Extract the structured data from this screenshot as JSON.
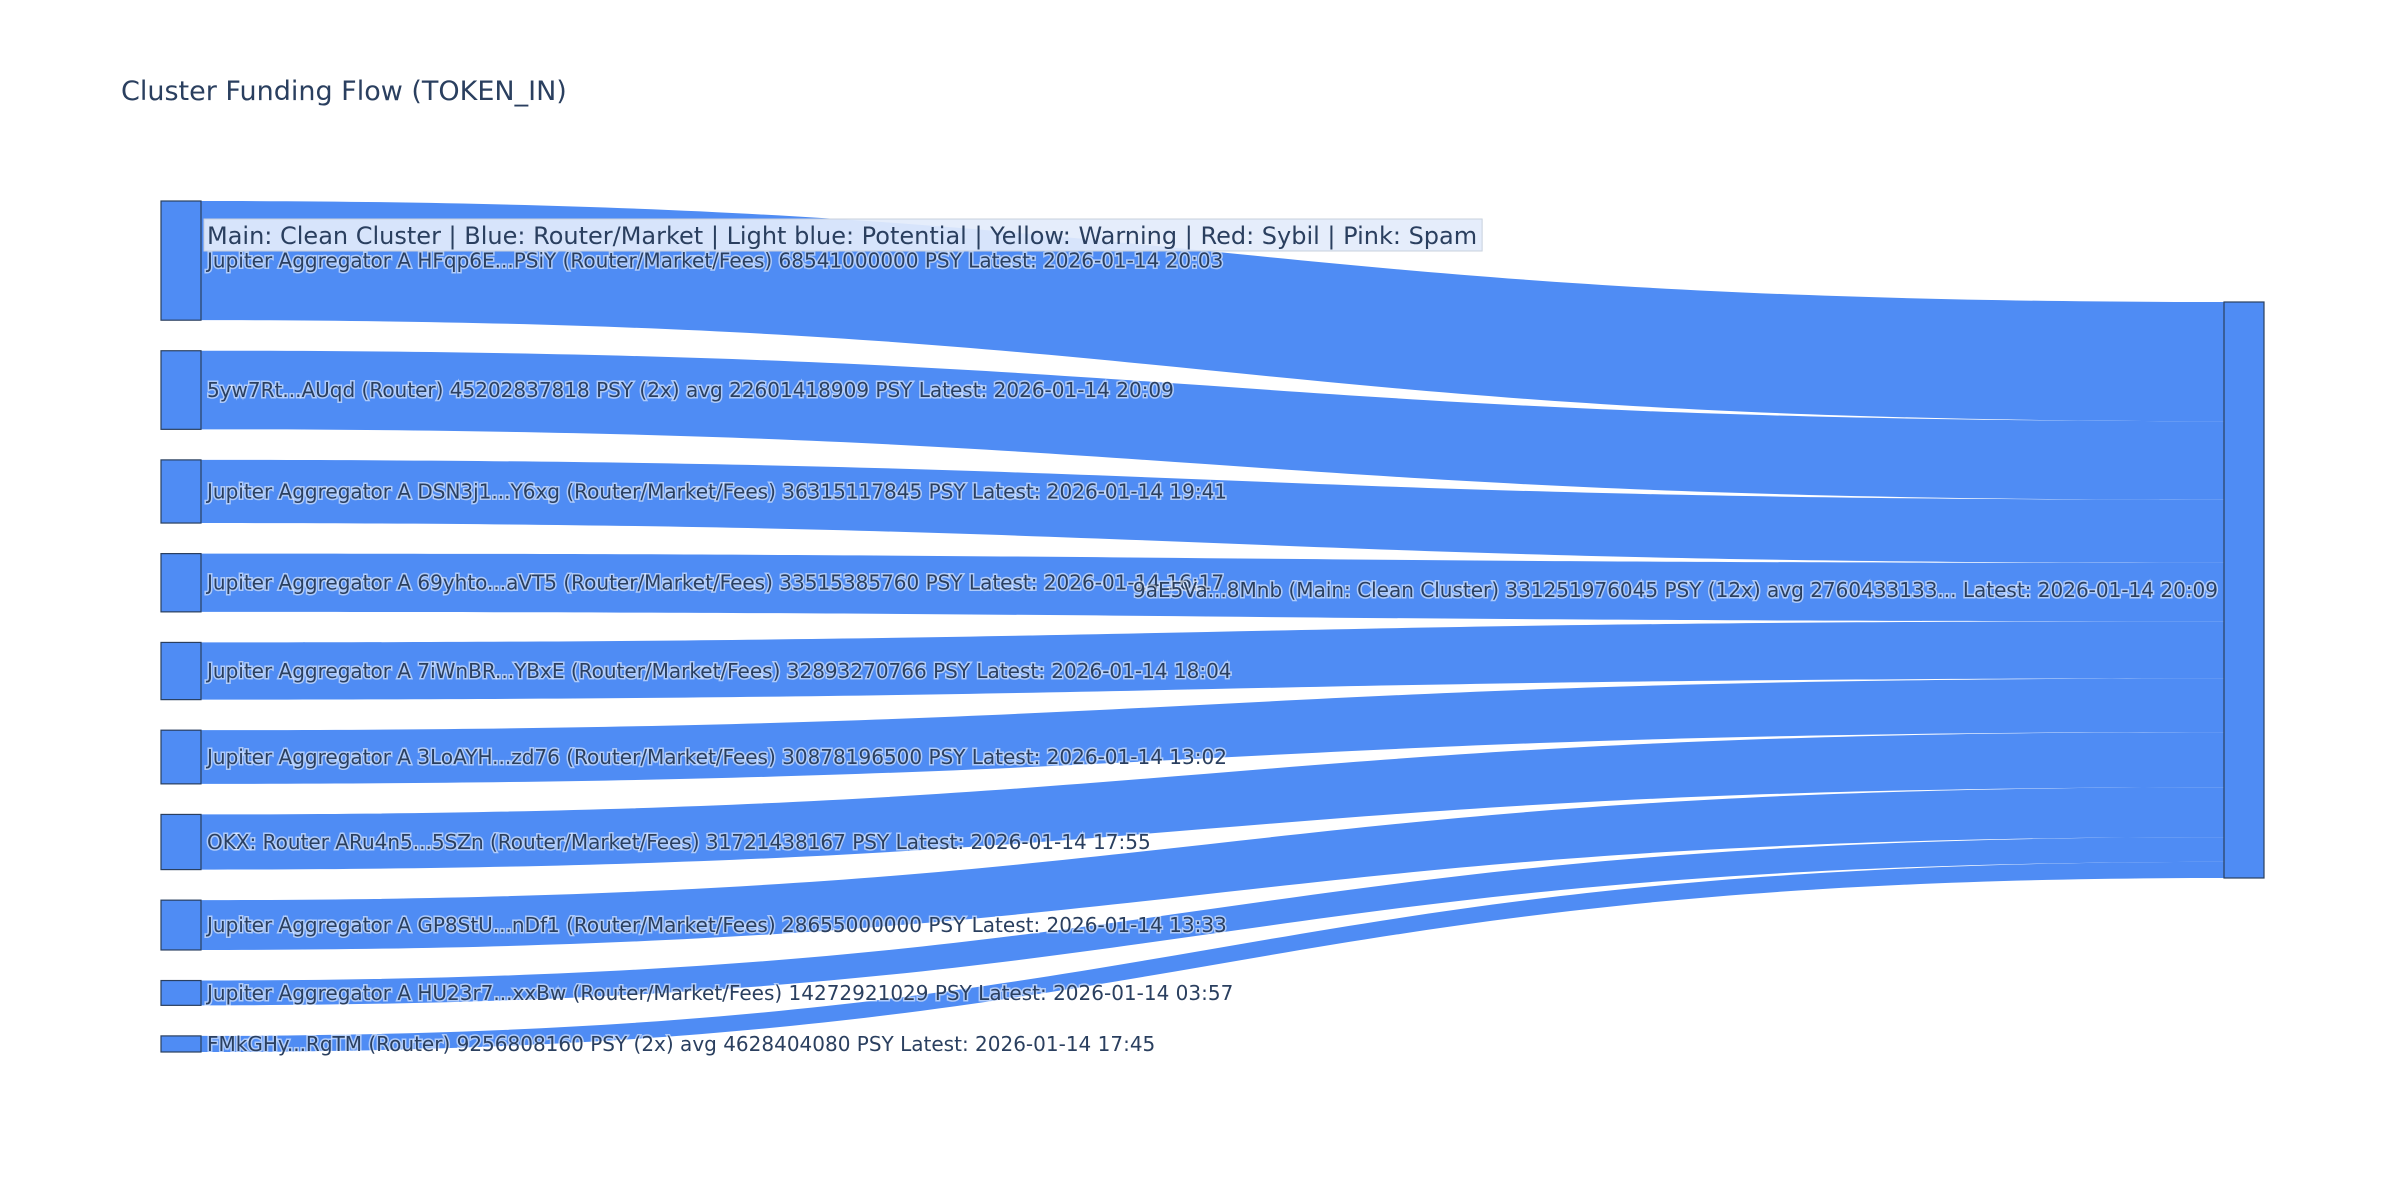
{
  "title": "Cluster Funding Flow (TOKEN_IN)",
  "legend_note": "Main: Clean Cluster  |  Blue: Router/Market | Light blue: Potential | Yellow: Warning | Red: Sybil | Pink: Spam",
  "colors": {
    "node_fill": "#4f8cf4",
    "node_stroke": "#2a3f5f",
    "link_fill": "#4f8cf4",
    "text": "#2a3f5f",
    "legend_bg": "#e3ecfb",
    "legend_border": "#c8d1de"
  },
  "chart_data": {
    "type": "sankey",
    "title": "Cluster Funding Flow (TOKEN_IN)",
    "target": {
      "label": "9aE5Va...8Mnb (Main: Clean Cluster) 331251976045 PSY (12x) avg 2760433133... Latest: 2026-01-14 20:09",
      "value": 331251976045
    },
    "sources": [
      {
        "label": "Jupiter Aggregator A HFqp6E...PSiY (Router/Market/Fees) 68541000000 PSY Latest: 2026-01-14 20:03",
        "value": 68541000000
      },
      {
        "label": "5yw7Rt...AUqd (Router) 45202837818 PSY (2x) avg 22601418909 PSY Latest: 2026-01-14 20:09",
        "value": 45202837818
      },
      {
        "label": "Jupiter Aggregator A DSN3j1...Y6xg (Router/Market/Fees) 36315117845 PSY Latest: 2026-01-14 19:41",
        "value": 36315117845
      },
      {
        "label": "Jupiter Aggregator A 69yhto...aVT5 (Router/Market/Fees) 33515385760 PSY Latest: 2026-01-14 16:17",
        "value": 33515385760
      },
      {
        "label": "Jupiter Aggregator A 7iWnBR...YBxE (Router/Market/Fees) 32893270766 PSY Latest: 2026-01-14 18:04",
        "value": 32893270766
      },
      {
        "label": "Jupiter Aggregator A 3LoAYH...zd76 (Router/Market/Fees) 30878196500 PSY Latest: 2026-01-14 13:02",
        "value": 30878196500
      },
      {
        "label": "OKX: Router ARu4n5...5SZn (Router/Market/Fees) 31721438167 PSY Latest: 2026-01-14 17:55",
        "value": 31721438167
      },
      {
        "label": "Jupiter Aggregator A GP8StU...nDf1 (Router/Market/Fees) 28655000000 PSY Latest: 2026-01-14 13:33",
        "value": 28655000000
      },
      {
        "label": "Jupiter Aggregator A HU23r7...xxBw (Router/Market/Fees) 14272921029 PSY Latest: 2026-01-14 03:57",
        "value": 14272921029
      },
      {
        "label": "FMkGHy...RgTM (Router) 9256808160 PSY (2x) avg 4628404080 PSY Latest: 2026-01-14 17:45",
        "value": 9256808160
      }
    ]
  }
}
